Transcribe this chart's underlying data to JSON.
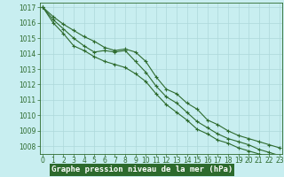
{
  "bg_color": "#c8eef0",
  "grid_color": "#add8da",
  "line_color": "#2d6a2d",
  "xlabel": "Graphe pression niveau de la mer (hPa)",
  "hours": [
    0,
    1,
    2,
    3,
    4,
    5,
    6,
    7,
    8,
    9,
    10,
    11,
    12,
    13,
    14,
    15,
    16,
    17,
    18,
    19,
    20,
    21,
    22,
    23
  ],
  "line1": [
    1017.0,
    1016.4,
    1015.9,
    1015.5,
    1015.1,
    1014.8,
    1014.4,
    1014.2,
    1014.3,
    1014.1,
    1013.5,
    1012.5,
    1011.7,
    1011.4,
    1010.8,
    1010.4,
    1009.7,
    1009.4,
    1009.0,
    1008.7,
    1008.5,
    1008.3,
    1008.1,
    1007.9
  ],
  "line2": [
    1017.0,
    1016.2,
    1015.6,
    1015.0,
    1014.5,
    1014.1,
    1014.2,
    1014.1,
    1014.2,
    1013.5,
    1012.8,
    1011.9,
    1011.2,
    1010.8,
    1010.2,
    1009.6,
    1009.2,
    1008.8,
    1008.5,
    1008.3,
    1008.1,
    1007.8,
    1007.6,
    1007.4
  ],
  "line3": [
    1017.0,
    1016.0,
    1015.3,
    1014.5,
    1014.2,
    1013.8,
    1013.5,
    1013.3,
    1013.1,
    1012.7,
    1012.2,
    1011.4,
    1010.7,
    1010.2,
    1009.7,
    1009.1,
    1008.8,
    1008.4,
    1008.2,
    1007.9,
    1007.7,
    1007.5,
    1007.3,
    1007.0
  ],
  "yticks": [
    1008,
    1009,
    1010,
    1011,
    1012,
    1013,
    1014,
    1015,
    1016,
    1017
  ],
  "xticks": [
    0,
    1,
    2,
    3,
    4,
    5,
    6,
    7,
    8,
    9,
    10,
    11,
    12,
    13,
    14,
    15,
    16,
    17,
    18,
    19,
    20,
    21,
    22,
    23
  ],
  "marker": "+",
  "markersize": 3,
  "linewidth": 0.8,
  "tick_color": "#2d6a2d",
  "bottom_label_color": "#ffffff",
  "bottom_bg_color": "#2d6a2d",
  "tick_fontsize": 5.5,
  "xlabel_fontsize": 6.5
}
